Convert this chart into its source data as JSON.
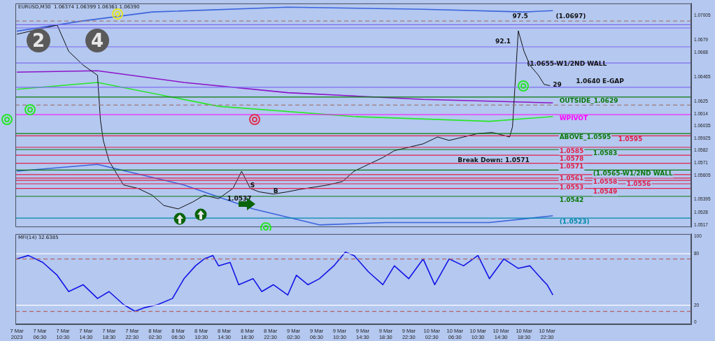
{
  "chart_data": [
    {
      "type": "line",
      "title": "EURUSD,M30  1.06374 1.06399 1.06361 1.06390",
      "xlim": [
        "2023-03-07T02:15",
        "2023-03-11T23:30"
      ],
      "ylim": [
        1.0515,
        1.0711
      ],
      "yticks": [
        1.07005,
        1.0679,
        1.0668,
        1.06465,
        1.0625,
        1.0614,
        1.06035,
        1.05925,
        1.0582,
        1.0571,
        1.05605,
        1.05395,
        1.0528,
        1.0517
      ],
      "tick_labels": "y",
      "grid": false,
      "legend": false,
      "marker": "none",
      "series": [
        {
          "color": "#101010",
          "x": [
            "2023-03-07T02:30",
            "2023-03-07T06:00",
            "2023-03-07T09:30",
            "2023-03-07T11:30",
            "2023-03-07T14:00",
            "2023-03-07T16:30",
            "2023-03-07T17:00",
            "2023-03-07T17:30",
            "2023-03-07T18:30",
            "2023-03-07T21:00",
            "2023-03-07T23:30",
            "2023-03-08T02:00",
            "2023-03-08T04:00",
            "2023-03-08T06:30",
            "2023-03-08T09:00",
            "2023-03-08T11:00",
            "2023-03-08T13:30",
            "2023-03-08T16:00",
            "2023-03-08T17:30",
            "2023-03-08T19:00",
            "2023-03-08T20:30",
            "2023-03-08T23:00",
            "2023-03-09T01:30",
            "2023-03-09T03:30",
            "2023-03-09T06:00",
            "2023-03-09T08:30",
            "2023-03-09T11:00",
            "2023-03-09T13:00",
            "2023-03-09T15:30",
            "2023-03-09T18:00",
            "2023-03-09T20:00",
            "2023-03-09T22:30",
            "2023-03-10T01:00",
            "2023-03-10T03:30",
            "2023-03-10T05:30",
            "2023-03-10T08:00",
            "2023-03-10T10:30",
            "2023-03-10T13:00",
            "2023-03-10T16:00",
            "2023-03-10T16:30",
            "2023-03-10T17:00",
            "2023-03-10T17:30",
            "2023-03-10T18:30",
            "2023-03-10T19:30",
            "2023-03-10T21:00",
            "2023-03-10T22:00",
            "2023-03-10T23:00"
          ],
          "values": [
            1.0684,
            1.0688,
            1.0692,
            1.0669,
            1.0657,
            1.0648,
            1.0609,
            1.0591,
            1.0573,
            1.0552,
            1.0549,
            1.0543,
            1.0534,
            1.0531,
            1.0537,
            1.0543,
            1.054,
            1.0549,
            1.0564,
            1.0549,
            1.0546,
            1.0544,
            1.0546,
            1.0548,
            1.055,
            1.0552,
            1.0555,
            1.0564,
            1.057,
            1.0576,
            1.0582,
            1.0585,
            1.0588,
            1.0594,
            1.0591,
            1.0594,
            1.0597,
            1.0598,
            1.0594,
            1.0603,
            1.0645,
            1.0687,
            1.0669,
            1.0657,
            1.0648,
            1.064,
            1.0639
          ]
        },
        {
          "color": "#3c64dc",
          "x": [
            "2023-03-07T02:30",
            "2023-03-07T14:00",
            "2023-03-08T02:00",
            "2023-03-09T01:30",
            "2023-03-10T01:00",
            "2023-03-10T18:30",
            "2023-03-10T23:30"
          ],
          "values": [
            1.06867,
            1.06957,
            1.07035,
            1.07077,
            1.07059,
            1.07035,
            1.07047
          ]
        },
        {
          "color": "#8c14c8",
          "x": [
            "2023-03-07T02:30",
            "2023-03-07T16:30",
            "2023-03-08T07:30",
            "2023-03-09T01:30",
            "2023-03-10T01:00",
            "2023-03-10T23:30"
          ],
          "values": [
            1.06508,
            1.0652,
            1.06418,
            1.06328,
            1.06269,
            1.06239
          ]
        },
        {
          "color": "#28e628",
          "x": [
            "2023-03-07T02:30",
            "2023-03-07T16:30",
            "2023-03-08T13:30",
            "2023-03-09T13:00",
            "2023-03-10T12:30",
            "2023-03-10T23:30"
          ],
          "values": [
            1.06358,
            1.06418,
            1.06209,
            1.06119,
            1.06077,
            1.06119
          ]
        },
        {
          "color": "#3c64dc",
          "x": [
            "2023-03-07T02:30",
            "2023-03-07T16:30",
            "2023-03-08T07:30",
            "2023-03-08T19:30",
            "2023-03-09T07:00",
            "2023-03-09T18:30",
            "2023-03-10T12:30",
            "2023-03-10T23:30"
          ],
          "values": [
            1.0564,
            1.057,
            1.0552,
            1.0531,
            1.0517,
            1.0519,
            1.0519,
            1.0525
          ]
        }
      ],
      "ref_lines": [
        {
          "axis": "y",
          "value": 1.06955,
          "label": null,
          "color": "#a07878",
          "line_style": "dashed"
        },
        {
          "axis": "y",
          "value": 1.06923,
          "label": null,
          "color": "#7c6cf0"
        },
        {
          "axis": "y",
          "value": 1.06895,
          "label": null,
          "color": "#7c6cf0"
        },
        {
          "axis": "y",
          "value": 1.0673,
          "label": null,
          "color": "#7c6cf0"
        },
        {
          "axis": "y",
          "value": 1.06588,
          "label": null,
          "color": "#7c6cf0"
        },
        {
          "axis": "y",
          "value": 1.06376,
          "label": null,
          "color": "#7c6cf0"
        },
        {
          "axis": "y",
          "value": 1.0629,
          "label": "OUTSIDE_1.0629",
          "color": "#0a780a"
        },
        {
          "axis": "y",
          "value": 1.0622,
          "label": null,
          "color": "#a07878",
          "line_style": "dashed"
        },
        {
          "axis": "y",
          "value": 1.06136,
          "label": "WPIVOT",
          "color": "#ff00ff"
        },
        {
          "axis": "y",
          "value": 1.0597,
          "label": "ABOVE_1.0595",
          "color": "#0a780a"
        },
        {
          "axis": "y",
          "value": 1.0595,
          "label": "1.0595",
          "color": "#e0204a"
        },
        {
          "axis": "y",
          "value": 1.0585,
          "label": "1.0585",
          "color": "#e0204a"
        },
        {
          "axis": "y",
          "value": 1.0583,
          "label": "1.0583",
          "color": "#0a780a"
        },
        {
          "axis": "y",
          "value": 1.0578,
          "label": "1.0578",
          "color": "#e0204a"
        },
        {
          "axis": "y",
          "value": 1.0571,
          "label": "1.0571",
          "color": "#e0204a"
        },
        {
          "axis": "y",
          "value": 1.0565,
          "label": "(1.0565-W1/2ND WALL",
          "color": "#0a780a"
        },
        {
          "axis": "y",
          "value": 1.0561,
          "label": "1.0561",
          "color": "#e0204a"
        },
        {
          "axis": "y",
          "value": 1.0558,
          "label": "1.0558",
          "color": "#e0204a"
        },
        {
          "axis": "y",
          "value": 1.0556,
          "label": "1.0556",
          "color": "#e0204a"
        },
        {
          "axis": "y",
          "value": 1.0553,
          "label": "1.0553",
          "color": "#e0204a"
        },
        {
          "axis": "y",
          "value": 1.0549,
          "label": "1.0549",
          "color": "#e0204a"
        },
        {
          "axis": "y",
          "value": 1.0542,
          "label": "1.0542",
          "color": "#0a780a"
        },
        {
          "axis": "y",
          "value": 1.0523,
          "label": "(1.0523)",
          "color": "#0088aa"
        }
      ],
      "annotations": [
        "2",
        "4",
        {
          "text": "(1.0697)",
          "x": "2023-03-11T00:00",
          "y": 1.0697
        },
        {
          "text": "97.5",
          "x": "2023-03-10T16:30",
          "y": 1.0697
        },
        {
          "text": "92.1",
          "x": "2023-03-10T13:30",
          "y": 1.0675
        },
        {
          "text": "(1.0655-W1/2ND WALL",
          "x": "2023-03-10T19:00",
          "y": 1.0655
        },
        {
          "text": "29",
          "x": "2023-03-10T23:30",
          "y": 1.0637
        },
        {
          "text": "1.0640 E-GAP",
          "x": "2023-03-11T03:30",
          "y": 1.064
        },
        {
          "text": "Break Down: 1.0571",
          "x": "2023-03-10T07:00",
          "y": 1.0571
        },
        {
          "text": "1.0537",
          "x": "2023-03-08T15:00",
          "y": 1.0537
        },
        {
          "text": "S",
          "x": "2023-03-08T19:00",
          "y": 1.0549
        },
        {
          "text": "B",
          "x": "2023-03-08T23:00",
          "y": 1.0544
        }
      ]
    },
    {
      "type": "line",
      "title": "MFI(14) 32.6385",
      "xlim": [
        "2023-03-07T02:15",
        "2023-03-11T23:30"
      ],
      "ylim": [
        -2,
        103
      ],
      "xticks": [
        {
          "value": "2023-03-07T02:30",
          "label": "7 Mar 2023"
        },
        {
          "value": "2023-03-07T06:30",
          "label": "7 Mar 06:30"
        },
        {
          "value": "2023-03-07T10:30",
          "label": "7 Mar 10:30"
        },
        {
          "value": "2023-03-07T14:30",
          "label": "7 Mar 14:30"
        },
        {
          "value": "2023-03-07T18:30",
          "label": "7 Mar 18:30"
        },
        {
          "value": "2023-03-07T22:30",
          "label": "7 Mar 22:30"
        },
        {
          "value": "2023-03-08T02:30",
          "label": "8 Mar 02:30"
        },
        {
          "value": "2023-03-08T06:30",
          "label": "8 Mar 06:30"
        },
        {
          "value": "2023-03-08T10:30",
          "label": "8 Mar 10:30"
        },
        {
          "value": "2023-03-08T14:30",
          "label": "8 Mar 14:30"
        },
        {
          "value": "2023-03-08T18:30",
          "label": "8 Mar 18:30"
        },
        {
          "value": "2023-03-08T22:30",
          "label": "8 Mar 22:30"
        },
        {
          "value": "2023-03-09T02:30",
          "label": "9 Mar 02:30"
        },
        {
          "value": "2023-03-09T06:30",
          "label": "9 Mar 06:30"
        },
        {
          "value": "2023-03-09T10:30",
          "label": "9 Mar 10:30"
        },
        {
          "value": "2023-03-09T14:30",
          "label": "9 Mar 14:30"
        },
        {
          "value": "2023-03-09T18:30",
          "label": "9 Mar 18:30"
        },
        {
          "value": "2023-03-09T22:30",
          "label": "9 Mar 22:30"
        },
        {
          "value": "2023-03-10T02:30",
          "label": "10 Mar 02:30"
        },
        {
          "value": "2023-03-10T06:30",
          "label": "10 Mar 06:30"
        },
        {
          "value": "2023-03-10T10:30",
          "label": "10 Mar 10:30"
        },
        {
          "value": "2023-03-10T14:30",
          "label": "10 Mar 14:30"
        },
        {
          "value": "2023-03-10T18:30",
          "label": "10 Mar 18:30"
        },
        {
          "value": "2023-03-10T22:30",
          "label": "10 Mar 22:30"
        }
      ],
      "yticks": [
        0,
        20,
        80,
        100
      ],
      "grid": false,
      "legend": false,
      "marker": "none",
      "series": [
        {
          "color": "#1414e6",
          "x": [
            "2023-03-07T02:30",
            "2023-03-07T04:30",
            "2023-03-07T07:00",
            "2023-03-07T09:30",
            "2023-03-07T11:30",
            "2023-03-07T14:00",
            "2023-03-07T16:30",
            "2023-03-07T18:30",
            "2023-03-07T21:00",
            "2023-03-07T23:00",
            "2023-03-08T00:30",
            "2023-03-08T03:00",
            "2023-03-08T05:30",
            "2023-03-08T07:30",
            "2023-03-08T09:30",
            "2023-03-08T11:00",
            "2023-03-08T12:30",
            "2023-03-08T13:30",
            "2023-03-08T15:30",
            "2023-03-08T17:00",
            "2023-03-08T19:30",
            "2023-03-08T21:00",
            "2023-03-08T23:00",
            "2023-03-09T01:30",
            "2023-03-09T03:00",
            "2023-03-09T05:00",
            "2023-03-09T07:00",
            "2023-03-09T09:30",
            "2023-03-09T11:30",
            "2023-03-09T13:00",
            "2023-03-09T15:30",
            "2023-03-09T18:00",
            "2023-03-09T20:00",
            "2023-03-09T22:30",
            "2023-03-10T01:00",
            "2023-03-10T03:00",
            "2023-03-10T05:30",
            "2023-03-10T08:00",
            "2023-03-10T10:30",
            "2023-03-10T12:30",
            "2023-03-10T15:00",
            "2023-03-10T17:30",
            "2023-03-10T19:30",
            "2023-03-10T21:30",
            "2023-03-10T22:30",
            "2023-03-10T23:30"
          ],
          "values": [
            74,
            78,
            70,
            55,
            36,
            44,
            28,
            36,
            21,
            13,
            17,
            21,
            28,
            51,
            66,
            74,
            78,
            66,
            70,
            44,
            51,
            36,
            44,
            32,
            55,
            44,
            51,
            66,
            82,
            78,
            59,
            44,
            66,
            51,
            74,
            44,
            74,
            66,
            78,
            51,
            74,
            63,
            66,
            51,
            44,
            32
          ]
        }
      ],
      "ref_lines": [
        {
          "axis": "y",
          "value": 80,
          "label": null,
          "color": "#ffffff"
        },
        {
          "axis": "y",
          "value": 74,
          "label": null,
          "color": "#b46464",
          "line_style": "dashed"
        },
        {
          "axis": "y",
          "value": 20,
          "label": null,
          "color": "#ffffff"
        },
        {
          "axis": "y",
          "value": 13,
          "label": null,
          "color": "#b46464",
          "line_style": "dashed"
        }
      ]
    }
  ]
}
